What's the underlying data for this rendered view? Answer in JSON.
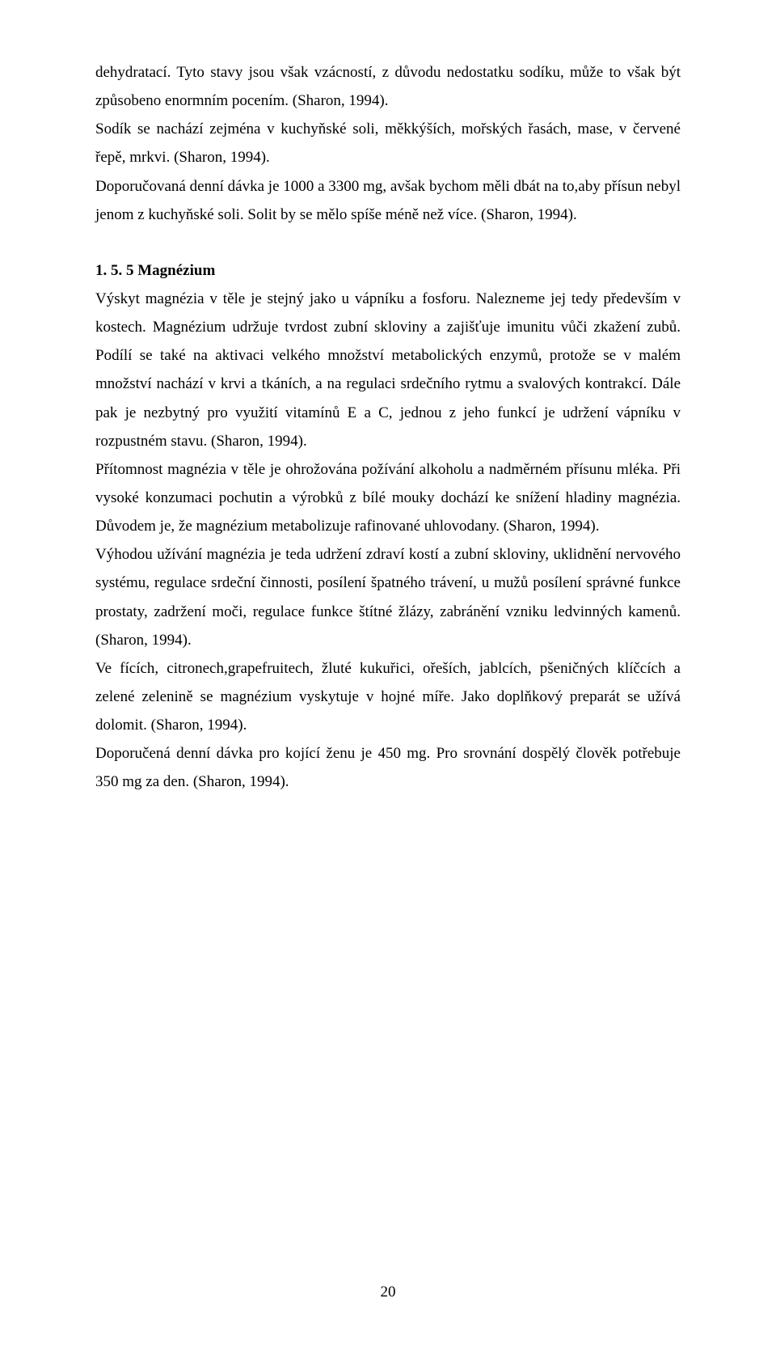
{
  "paragraphs": {
    "p1": "dehydratací. Tyto stavy jsou však vzácností, z důvodu nedostatku sodíku, může to však být způsobeno enormním pocením. (Sharon, 1994).",
    "p2": "Sodík se nachází zejména v kuchyňské soli, měkkýších, mořských řasách, mase, v červené řepě, mrkvi. (Sharon, 1994).",
    "p3": "Doporučovaná denní dávka je 1000 a 3300 mg, avšak bychom měli dbát na to,aby přísun nebyl jenom z kuchyňské soli. Solit by se mělo spíše méně než více. (Sharon, 1994).",
    "h1": "1. 5. 5 Magnézium",
    "p4": "Výskyt magnézia v těle je stejný jako u vápníku a fosforu. Nalezneme jej tedy především v kostech. Magnézium udržuje tvrdost zubní skloviny a zajišťuje imunitu vůči zkažení zubů. Podílí se také na aktivaci velkého množství metabolických enzymů, protože se v malém množství nachází v krvi a tkáních, a na regulaci srdečního rytmu a svalových kontrakcí. Dále pak je nezbytný pro využití vitamínů E a C, jednou z jeho funkcí je udržení vápníku v rozpustném stavu. (Sharon, 1994).",
    "p5": "Přítomnost magnézia v těle je ohrožována požívání alkoholu a nadměrném přísunu mléka. Při vysoké konzumaci pochutin a výrobků z bílé mouky dochází ke snížení hladiny magnézia. Důvodem je, že magnézium metabolizuje rafinované uhlovodany. (Sharon, 1994).",
    "p6": "Výhodou užívání magnézia je teda udržení zdraví kostí a zubní skloviny, uklidnění nervového systému, regulace srdeční činnosti, posílení špatného trávení, u mužů posílení správné funkce prostaty, zadržení moči, regulace funkce štítné žlázy, zabránění vzniku ledvinných kamenů. (Sharon, 1994).",
    "p7": "Ve fících, citronech,grapefruitech, žluté kukuřici, ořeších, jablcích, pšeničných klíčcích a zelené zelenině se magnézium vyskytuje v hojné míře. Jako doplňkový preparát se užívá dolomit. (Sharon, 1994).",
    "p8": "Doporučená denní dávka pro kojící ženu je 450 mg. Pro srovnání dospělý člověk potřebuje 350 mg za den. (Sharon, 1994)."
  },
  "page_number": "20"
}
